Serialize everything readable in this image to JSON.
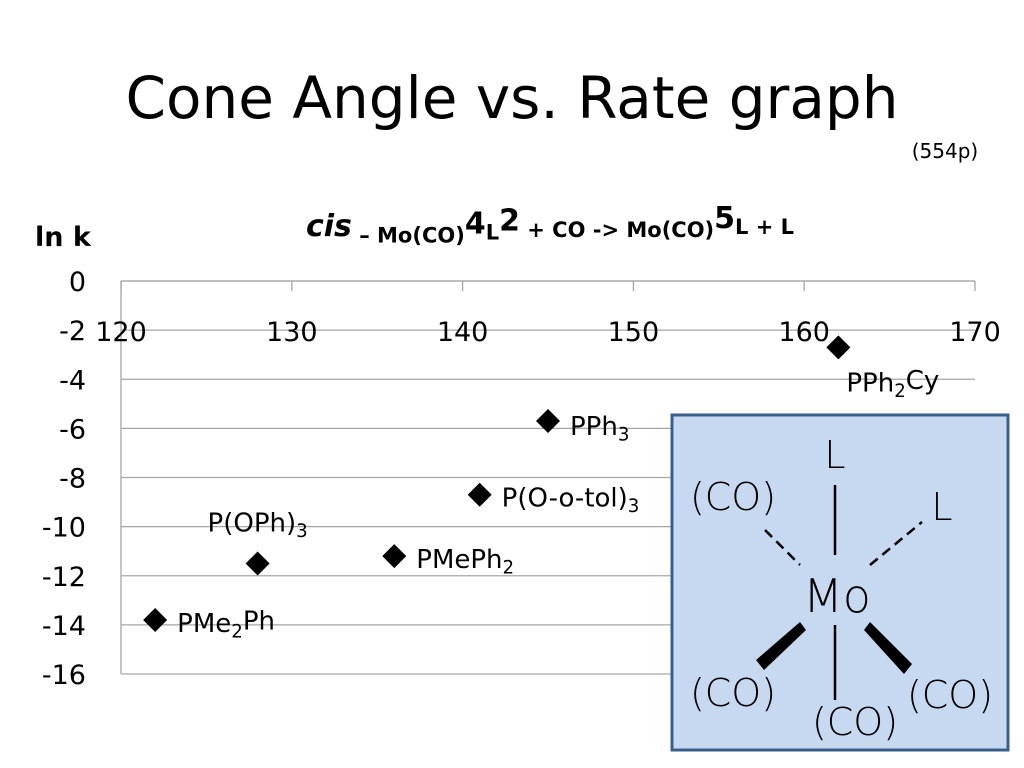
{
  "slide": {
    "title": "Cone Angle vs. Rate graph",
    "note": "(554p)"
  },
  "chart_data": {
    "type": "scatter",
    "title_parts": [
      "cis",
      " – Mo(CO)",
      "4",
      "L",
      "2",
      " + CO -> Mo(CO)",
      "5",
      "L + L"
    ],
    "ylabel": "ln k",
    "x": [
      122,
      128,
      136,
      141,
      145,
      162
    ],
    "values": [
      -13.8,
      -11.5,
      -11.2,
      -8.7,
      -5.7,
      -2.7
    ],
    "point_labels": [
      [
        "PMe",
        "2",
        "Ph"
      ],
      [
        "P(OPh)",
        "3"
      ],
      [
        "PMePh",
        "2"
      ],
      [
        "P(O-o-tol)",
        "3"
      ],
      [
        "PPh",
        "3"
      ],
      [
        "PPh",
        "2",
        "Cy"
      ]
    ],
    "color": "#000000",
    "xlim": [
      120,
      170
    ],
    "xticks": [
      120,
      130,
      140,
      150,
      160,
      170
    ],
    "ylim": [
      -16,
      0
    ],
    "yticks": [
      0,
      -2,
      -4,
      -6,
      -8,
      -10,
      -12,
      -14,
      -16
    ],
    "grid": true
  },
  "diagram": {
    "labels": [
      "L",
      "(CO)",
      "L",
      "Mo",
      "(CO)",
      "(CO)",
      "(CO)"
    ]
  }
}
